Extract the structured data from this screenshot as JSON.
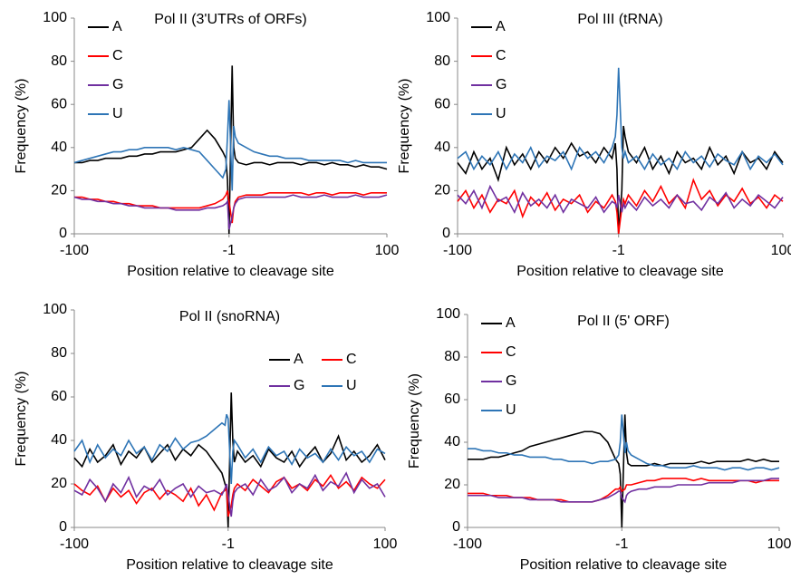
{
  "chart_data": [
    {
      "type": "line",
      "title": "Pol II (3'UTRs of ORFs)",
      "xlabel": "Position relative to cleavage site",
      "ylabel": "Frequency (%)",
      "x": [
        -100,
        -95,
        -90,
        -85,
        -80,
        -75,
        -70,
        -65,
        -60,
        -55,
        -50,
        -45,
        -40,
        -35,
        -30,
        -25,
        -20,
        -15,
        -10,
        -5,
        -3,
        -2,
        -1,
        1,
        2,
        3,
        5,
        10,
        15,
        20,
        25,
        30,
        35,
        40,
        45,
        50,
        55,
        60,
        65,
        70,
        75,
        80,
        85,
        90,
        95,
        100
      ],
      "xlim": [
        -100,
        100
      ],
      "xticks": [
        -100,
        -1,
        100
      ],
      "ylim": [
        0,
        100
      ],
      "yticks": [
        0,
        20,
        40,
        60,
        80,
        100
      ],
      "legend_loc": "upper left",
      "legend_ncol": 1,
      "series": [
        {
          "name": "A",
          "color": "#000000",
          "values": [
            33,
            33,
            34,
            34,
            35,
            35,
            35,
            36,
            36,
            37,
            37,
            38,
            38,
            38,
            39,
            40,
            44,
            48,
            44,
            38,
            35,
            25,
            0,
            78,
            40,
            35,
            33,
            32,
            33,
            33,
            32,
            33,
            33,
            33,
            32,
            33,
            33,
            32,
            33,
            32,
            32,
            31,
            32,
            31,
            31,
            30
          ]
        },
        {
          "name": "C",
          "color": "#ff0000",
          "values": [
            17,
            17,
            16,
            16,
            15,
            15,
            14,
            14,
            13,
            13,
            13,
            12,
            12,
            12,
            12,
            12,
            12,
            13,
            14,
            16,
            18,
            20,
            15,
            5,
            12,
            15,
            17,
            18,
            18,
            18,
            19,
            19,
            19,
            19,
            19,
            18,
            19,
            19,
            18,
            19,
            19,
            19,
            18,
            19,
            19,
            19
          ]
        },
        {
          "name": "G",
          "color": "#7030a0",
          "values": [
            17,
            16,
            16,
            15,
            15,
            14,
            14,
            13,
            13,
            12,
            12,
            12,
            12,
            11,
            11,
            11,
            11,
            12,
            12,
            13,
            14,
            15,
            2,
            8,
            12,
            14,
            16,
            17,
            17,
            17,
            17,
            17,
            17,
            18,
            17,
            17,
            17,
            18,
            17,
            17,
            17,
            18,
            17,
            17,
            17,
            18
          ]
        },
        {
          "name": "U",
          "color": "#2e75b6",
          "values": [
            33,
            34,
            35,
            36,
            37,
            38,
            38,
            39,
            39,
            40,
            40,
            40,
            40,
            39,
            40,
            39,
            38,
            34,
            30,
            26,
            30,
            45,
            62,
            20,
            50,
            45,
            42,
            40,
            38,
            37,
            36,
            36,
            35,
            35,
            35,
            34,
            34,
            34,
            34,
            34,
            33,
            34,
            33,
            33,
            33,
            33
          ]
        }
      ]
    },
    {
      "type": "line",
      "title": "Pol III (tRNA)",
      "xlabel": "Position relative to cleavage site",
      "ylabel": "Frequency (%)",
      "x": [
        -100,
        -95,
        -90,
        -85,
        -80,
        -75,
        -70,
        -65,
        -60,
        -55,
        -50,
        -45,
        -40,
        -35,
        -30,
        -25,
        -20,
        -15,
        -10,
        -5,
        -3,
        -2,
        -1,
        1,
        2,
        3,
        5,
        10,
        15,
        20,
        25,
        30,
        35,
        40,
        45,
        50,
        55,
        60,
        65,
        70,
        75,
        80,
        85,
        90,
        95,
        100
      ],
      "xlim": [
        -100,
        100
      ],
      "xticks": [
        -100,
        -1,
        100
      ],
      "ylim": [
        0,
        100
      ],
      "yticks": [
        0,
        20,
        40,
        60,
        80,
        100
      ],
      "legend_loc": "upper left",
      "legend_ncol": 1,
      "series": [
        {
          "name": "A",
          "color": "#000000",
          "values": [
            33,
            28,
            38,
            30,
            35,
            25,
            40,
            32,
            37,
            30,
            38,
            33,
            40,
            35,
            42,
            36,
            38,
            33,
            40,
            35,
            42,
            30,
            0,
            20,
            50,
            45,
            38,
            33,
            40,
            30,
            36,
            28,
            38,
            33,
            35,
            30,
            40,
            32,
            36,
            28,
            38,
            33,
            35,
            30,
            38,
            33
          ]
        },
        {
          "name": "C",
          "color": "#ff0000",
          "values": [
            15,
            20,
            12,
            18,
            10,
            16,
            14,
            20,
            8,
            17,
            13,
            19,
            11,
            16,
            14,
            18,
            10,
            15,
            12,
            18,
            15,
            10,
            0,
            12,
            16,
            14,
            18,
            13,
            20,
            15,
            22,
            14,
            18,
            12,
            25,
            16,
            20,
            13,
            18,
            15,
            21,
            14,
            17,
            12,
            18,
            15
          ]
        },
        {
          "name": "G",
          "color": "#7030a0",
          "values": [
            18,
            14,
            20,
            12,
            22,
            15,
            17,
            10,
            19,
            13,
            16,
            12,
            18,
            10,
            16,
            14,
            12,
            17,
            10,
            15,
            14,
            12,
            18,
            10,
            14,
            12,
            15,
            11,
            17,
            13,
            16,
            12,
            18,
            14,
            15,
            11,
            17,
            14,
            19,
            12,
            16,
            13,
            18,
            15,
            12,
            17
          ]
        },
        {
          "name": "U",
          "color": "#2e75b6",
          "values": [
            35,
            38,
            30,
            36,
            32,
            38,
            30,
            37,
            33,
            40,
            31,
            36,
            34,
            38,
            30,
            40,
            35,
            38,
            33,
            40,
            45,
            55,
            77,
            40,
            35,
            38,
            33,
            36,
            30,
            37,
            32,
            35,
            30,
            38,
            33,
            36,
            31,
            37,
            34,
            32,
            38,
            30,
            36,
            33,
            37,
            32
          ]
        }
      ]
    },
    {
      "type": "line",
      "title": "Pol II (snoRNA)",
      "xlabel": "Position relative to cleavage site",
      "ylabel": "Frequency (%)",
      "x": [
        -100,
        -95,
        -90,
        -85,
        -80,
        -75,
        -70,
        -65,
        -60,
        -55,
        -50,
        -45,
        -40,
        -35,
        -30,
        -25,
        -20,
        -15,
        -10,
        -5,
        -3,
        -2,
        -1,
        1,
        2,
        3,
        5,
        10,
        15,
        20,
        25,
        30,
        35,
        40,
        45,
        50,
        55,
        60,
        65,
        70,
        75,
        80,
        85,
        90,
        95,
        100
      ],
      "xlim": [
        -100,
        100
      ],
      "xticks": [
        -100,
        -1,
        100
      ],
      "ylim": [
        0,
        100
      ],
      "yticks": [
        0,
        20,
        40,
        60,
        80,
        100
      ],
      "legend_loc": "upper right",
      "legend_ncol": 2,
      "series": [
        {
          "name": "A",
          "color": "#000000",
          "values": [
            32,
            28,
            36,
            30,
            33,
            38,
            29,
            35,
            32,
            37,
            30,
            34,
            38,
            31,
            36,
            33,
            38,
            35,
            30,
            25,
            20,
            18,
            0,
            62,
            40,
            30,
            35,
            30,
            33,
            28,
            36,
            32,
            30,
            35,
            28,
            33,
            37,
            30,
            34,
            42,
            31,
            35,
            30,
            33,
            38,
            31
          ]
        },
        {
          "name": "C",
          "color": "#ff0000",
          "values": [
            20,
            17,
            15,
            19,
            12,
            18,
            14,
            17,
            11,
            16,
            18,
            13,
            17,
            15,
            12,
            18,
            10,
            15,
            8,
            16,
            17,
            18,
            5,
            10,
            15,
            18,
            20,
            17,
            22,
            19,
            16,
            21,
            23,
            18,
            20,
            17,
            22,
            19,
            24,
            18,
            21,
            17,
            23,
            20,
            18,
            22
          ]
        },
        {
          "name": "G",
          "color": "#7030a0",
          "values": [
            17,
            15,
            22,
            18,
            12,
            20,
            16,
            23,
            14,
            19,
            17,
            22,
            15,
            18,
            20,
            14,
            19,
            16,
            17,
            15,
            18,
            20,
            15,
            5,
            12,
            16,
            18,
            20,
            15,
            22,
            17,
            19,
            23,
            16,
            20,
            18,
            24,
            17,
            21,
            19,
            25,
            16,
            22,
            18,
            20,
            14
          ]
        },
        {
          "name": "U",
          "color": "#2e75b6",
          "values": [
            35,
            40,
            30,
            38,
            32,
            36,
            33,
            40,
            34,
            37,
            31,
            38,
            35,
            41,
            36,
            39,
            40,
            42,
            45,
            48,
            47,
            52,
            50,
            20,
            35,
            40,
            38,
            32,
            36,
            30,
            37,
            33,
            35,
            29,
            36,
            32,
            34,
            30,
            36,
            31,
            37,
            33,
            35,
            30,
            36,
            34
          ]
        }
      ]
    },
    {
      "type": "line",
      "title": "Pol II (5' ORF)",
      "xlabel": "Position relative to cleavage site",
      "ylabel": "Frequency (%)",
      "x": [
        -100,
        -95,
        -90,
        -85,
        -80,
        -75,
        -70,
        -65,
        -60,
        -55,
        -50,
        -45,
        -40,
        -35,
        -30,
        -25,
        -20,
        -15,
        -10,
        -5,
        -3,
        -2,
        -1,
        1,
        2,
        3,
        5,
        10,
        15,
        20,
        25,
        30,
        35,
        40,
        45,
        50,
        55,
        60,
        65,
        70,
        75,
        80,
        85,
        90,
        95,
        100
      ],
      "xlim": [
        -100,
        100
      ],
      "xticks": [
        -100,
        -1,
        100
      ],
      "ylim": [
        0,
        100
      ],
      "yticks": [
        0,
        20,
        40,
        60,
        80,
        100
      ],
      "legend_loc": "upper left",
      "legend_ncol": 1,
      "series": [
        {
          "name": "A",
          "color": "#000000",
          "values": [
            32,
            32,
            32,
            33,
            33,
            34,
            35,
            36,
            38,
            39,
            40,
            41,
            42,
            43,
            44,
            45,
            45,
            44,
            40,
            32,
            30,
            25,
            0,
            53,
            35,
            30,
            29,
            29,
            29,
            30,
            29,
            30,
            30,
            30,
            30,
            31,
            30,
            31,
            31,
            31,
            31,
            32,
            31,
            32,
            31,
            31
          ]
        },
        {
          "name": "C",
          "color": "#ff0000",
          "values": [
            16,
            16,
            16,
            15,
            15,
            15,
            14,
            14,
            14,
            13,
            13,
            13,
            13,
            12,
            12,
            12,
            12,
            13,
            15,
            18,
            18,
            19,
            17,
            18,
            20,
            20,
            20,
            21,
            22,
            22,
            23,
            23,
            23,
            23,
            22,
            23,
            22,
            22,
            22,
            22,
            22,
            22,
            21,
            22,
            22,
            22
          ]
        },
        {
          "name": "G",
          "color": "#7030a0",
          "values": [
            15,
            15,
            15,
            15,
            14,
            14,
            14,
            14,
            13,
            13,
            13,
            13,
            12,
            12,
            12,
            12,
            12,
            13,
            14,
            16,
            17,
            17,
            14,
            12,
            15,
            16,
            17,
            18,
            18,
            19,
            19,
            19,
            20,
            20,
            20,
            20,
            21,
            21,
            21,
            21,
            22,
            22,
            22,
            22,
            23,
            23
          ]
        },
        {
          "name": "U",
          "color": "#2e75b6",
          "values": [
            37,
            37,
            36,
            36,
            35,
            35,
            34,
            34,
            33,
            33,
            33,
            32,
            32,
            31,
            31,
            31,
            30,
            31,
            31,
            32,
            34,
            40,
            53,
            35,
            40,
            36,
            34,
            32,
            30,
            29,
            29,
            28,
            28,
            28,
            29,
            28,
            28,
            28,
            27,
            28,
            28,
            27,
            28,
            28,
            27,
            28
          ]
        }
      ]
    }
  ]
}
